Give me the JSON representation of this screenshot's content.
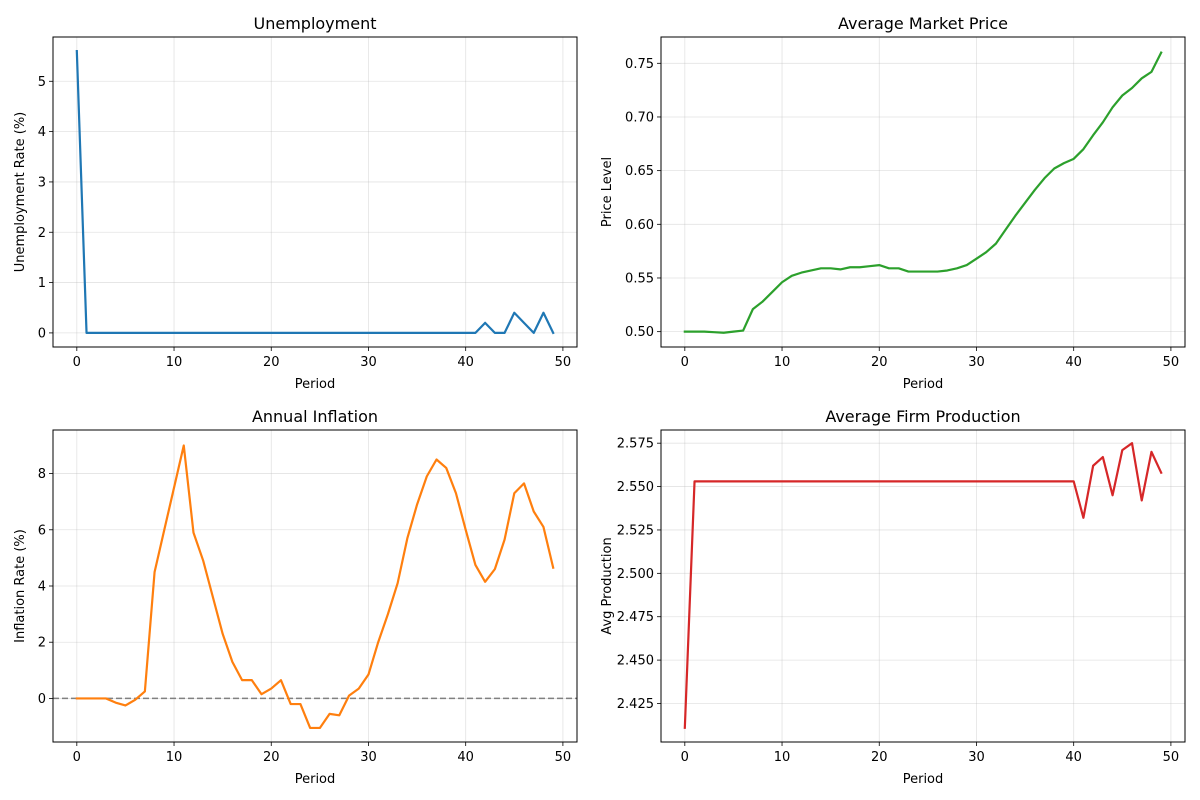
{
  "chart_data": [
    {
      "type": "line",
      "title": "Unemployment",
      "xlabel": "Period",
      "ylabel": "Unemployment Rate (%)",
      "color": "#1f77b4",
      "grid": true,
      "xlim": [
        -2.45,
        51.45
      ],
      "ylim": [
        -0.28,
        5.88
      ],
      "xticks": [
        0,
        10,
        20,
        30,
        40,
        50
      ],
      "yticks": [
        0,
        1,
        2,
        3,
        4,
        5
      ],
      "xtick_labels": [
        "0",
        "10",
        "20",
        "30",
        "40",
        "50"
      ],
      "ytick_labels": [
        "0",
        "1",
        "2",
        "3",
        "4",
        "5"
      ],
      "x": [
        0,
        1,
        2,
        3,
        4,
        5,
        6,
        7,
        8,
        9,
        10,
        11,
        12,
        13,
        14,
        15,
        16,
        17,
        18,
        19,
        20,
        21,
        22,
        23,
        24,
        25,
        26,
        27,
        28,
        29,
        30,
        31,
        32,
        33,
        34,
        35,
        36,
        37,
        38,
        39,
        40,
        41,
        42,
        43,
        44,
        45,
        46,
        47,
        48,
        49
      ],
      "values": [
        5.6,
        0,
        0,
        0,
        0,
        0,
        0,
        0,
        0,
        0,
        0,
        0,
        0,
        0,
        0,
        0,
        0,
        0,
        0,
        0,
        0,
        0,
        0,
        0,
        0,
        0,
        0,
        0,
        0,
        0,
        0,
        0,
        0,
        0,
        0,
        0,
        0,
        0,
        0,
        0,
        0,
        0,
        0.2,
        0,
        0,
        0.4,
        0.2,
        0,
        0.4,
        0
      ]
    },
    {
      "type": "line",
      "title": "Average Market Price",
      "xlabel": "Period",
      "ylabel": "Price Level",
      "color": "#2ca02c",
      "grid": true,
      "xlim": [
        -2.45,
        51.45
      ],
      "ylim": [
        0.4857,
        0.7745
      ],
      "xticks": [
        0,
        10,
        20,
        30,
        40,
        50
      ],
      "yticks": [
        0.5,
        0.55,
        0.6,
        0.65,
        0.7,
        0.75
      ],
      "xtick_labels": [
        "0",
        "10",
        "20",
        "30",
        "40",
        "50"
      ],
      "ytick_labels": [
        "0.50",
        "0.55",
        "0.60",
        "0.65",
        "0.70",
        "0.75"
      ],
      "x": [
        0,
        1,
        2,
        3,
        4,
        5,
        6,
        7,
        8,
        9,
        10,
        11,
        12,
        13,
        14,
        15,
        16,
        17,
        18,
        19,
        20,
        21,
        22,
        23,
        24,
        25,
        26,
        27,
        28,
        29,
        30,
        31,
        32,
        33,
        34,
        35,
        36,
        37,
        38,
        39,
        40,
        41,
        42,
        43,
        44,
        45,
        46,
        47,
        48,
        49
      ],
      "values": [
        0.5,
        0.5,
        0.5,
        0.4995,
        0.499,
        0.5,
        0.501,
        0.521,
        0.528,
        0.537,
        0.546,
        0.552,
        0.555,
        0.557,
        0.559,
        0.559,
        0.558,
        0.56,
        0.56,
        0.561,
        0.562,
        0.559,
        0.559,
        0.556,
        0.556,
        0.556,
        0.556,
        0.557,
        0.559,
        0.562,
        0.568,
        0.574,
        0.582,
        0.595,
        0.608,
        0.62,
        0.632,
        0.643,
        0.652,
        0.657,
        0.661,
        0.67,
        0.683,
        0.695,
        0.709,
        0.72,
        0.727,
        0.736,
        0.742,
        0.76
      ]
    },
    {
      "type": "line",
      "title": "Annual Inflation",
      "xlabel": "Period",
      "ylabel": "Inflation Rate (%)",
      "color": "#ff7f0e",
      "grid": true,
      "xlim": [
        -2.45,
        51.45
      ],
      "ylim": [
        -1.55,
        9.55
      ],
      "xticks": [
        0,
        10,
        20,
        30,
        40,
        50
      ],
      "yticks": [
        0,
        2,
        4,
        6,
        8
      ],
      "xtick_labels": [
        "0",
        "10",
        "20",
        "30",
        "40",
        "50"
      ],
      "ytick_labels": [
        "0",
        "2",
        "4",
        "6",
        "8"
      ],
      "reference_line": {
        "y": 0,
        "style": "dashed",
        "color": "#808080"
      },
      "x": [
        0,
        1,
        2,
        3,
        4,
        5,
        6,
        7,
        8,
        9,
        10,
        11,
        12,
        13,
        14,
        15,
        16,
        17,
        18,
        19,
        20,
        21,
        22,
        23,
        24,
        25,
        26,
        27,
        28,
        29,
        30,
        31,
        32,
        33,
        34,
        35,
        36,
        37,
        38,
        39,
        40,
        41,
        42,
        43,
        44,
        45,
        46,
        47,
        48,
        49
      ],
      "values": [
        0,
        0,
        0,
        0,
        -0.15,
        -0.25,
        -0.05,
        0.25,
        4.5,
        6.0,
        7.5,
        9.0,
        5.9,
        4.9,
        3.6,
        2.3,
        1.3,
        0.65,
        0.65,
        0.15,
        0.35,
        0.65,
        -0.2,
        -0.2,
        -1.05,
        -1.05,
        -0.55,
        -0.6,
        0.1,
        0.35,
        0.85,
        2.0,
        3.0,
        4.1,
        5.7,
        6.9,
        7.9,
        8.5,
        8.2,
        7.3,
        6.0,
        4.75,
        4.15,
        4.6,
        5.65,
        7.3,
        7.65,
        6.65,
        6.1,
        4.65
      ]
    },
    {
      "type": "line",
      "title": "Average Firm Production",
      "xlabel": "Period",
      "ylabel": "Avg Production",
      "color": "#d62728",
      "grid": true,
      "xlim": [
        -2.45,
        51.45
      ],
      "ylim": [
        2.4028,
        2.5826
      ],
      "xticks": [
        0,
        10,
        20,
        30,
        40,
        50
      ],
      "yticks": [
        2.425,
        2.45,
        2.475,
        2.5,
        2.525,
        2.55,
        2.575
      ],
      "xtick_labels": [
        "0",
        "10",
        "20",
        "30",
        "40",
        "50"
      ],
      "ytick_labels": [
        "2.425",
        "2.450",
        "2.475",
        "2.500",
        "2.525",
        "2.550",
        "2.575"
      ],
      "x": [
        0,
        1,
        2,
        3,
        4,
        5,
        6,
        7,
        8,
        9,
        10,
        11,
        12,
        13,
        14,
        15,
        16,
        17,
        18,
        19,
        20,
        21,
        22,
        23,
        24,
        25,
        26,
        27,
        28,
        29,
        30,
        31,
        32,
        33,
        34,
        35,
        36,
        37,
        38,
        39,
        40,
        41,
        42,
        43,
        44,
        45,
        46,
        47,
        48,
        49
      ],
      "values": [
        2.411,
        2.553,
        2.553,
        2.553,
        2.553,
        2.553,
        2.553,
        2.553,
        2.553,
        2.553,
        2.553,
        2.553,
        2.553,
        2.553,
        2.553,
        2.553,
        2.553,
        2.553,
        2.553,
        2.553,
        2.553,
        2.553,
        2.553,
        2.553,
        2.553,
        2.553,
        2.553,
        2.553,
        2.553,
        2.553,
        2.553,
        2.553,
        2.553,
        2.553,
        2.553,
        2.553,
        2.553,
        2.553,
        2.553,
        2.553,
        2.553,
        2.532,
        2.562,
        2.567,
        2.545,
        2.571,
        2.575,
        2.542,
        2.57,
        2.558
      ]
    }
  ]
}
